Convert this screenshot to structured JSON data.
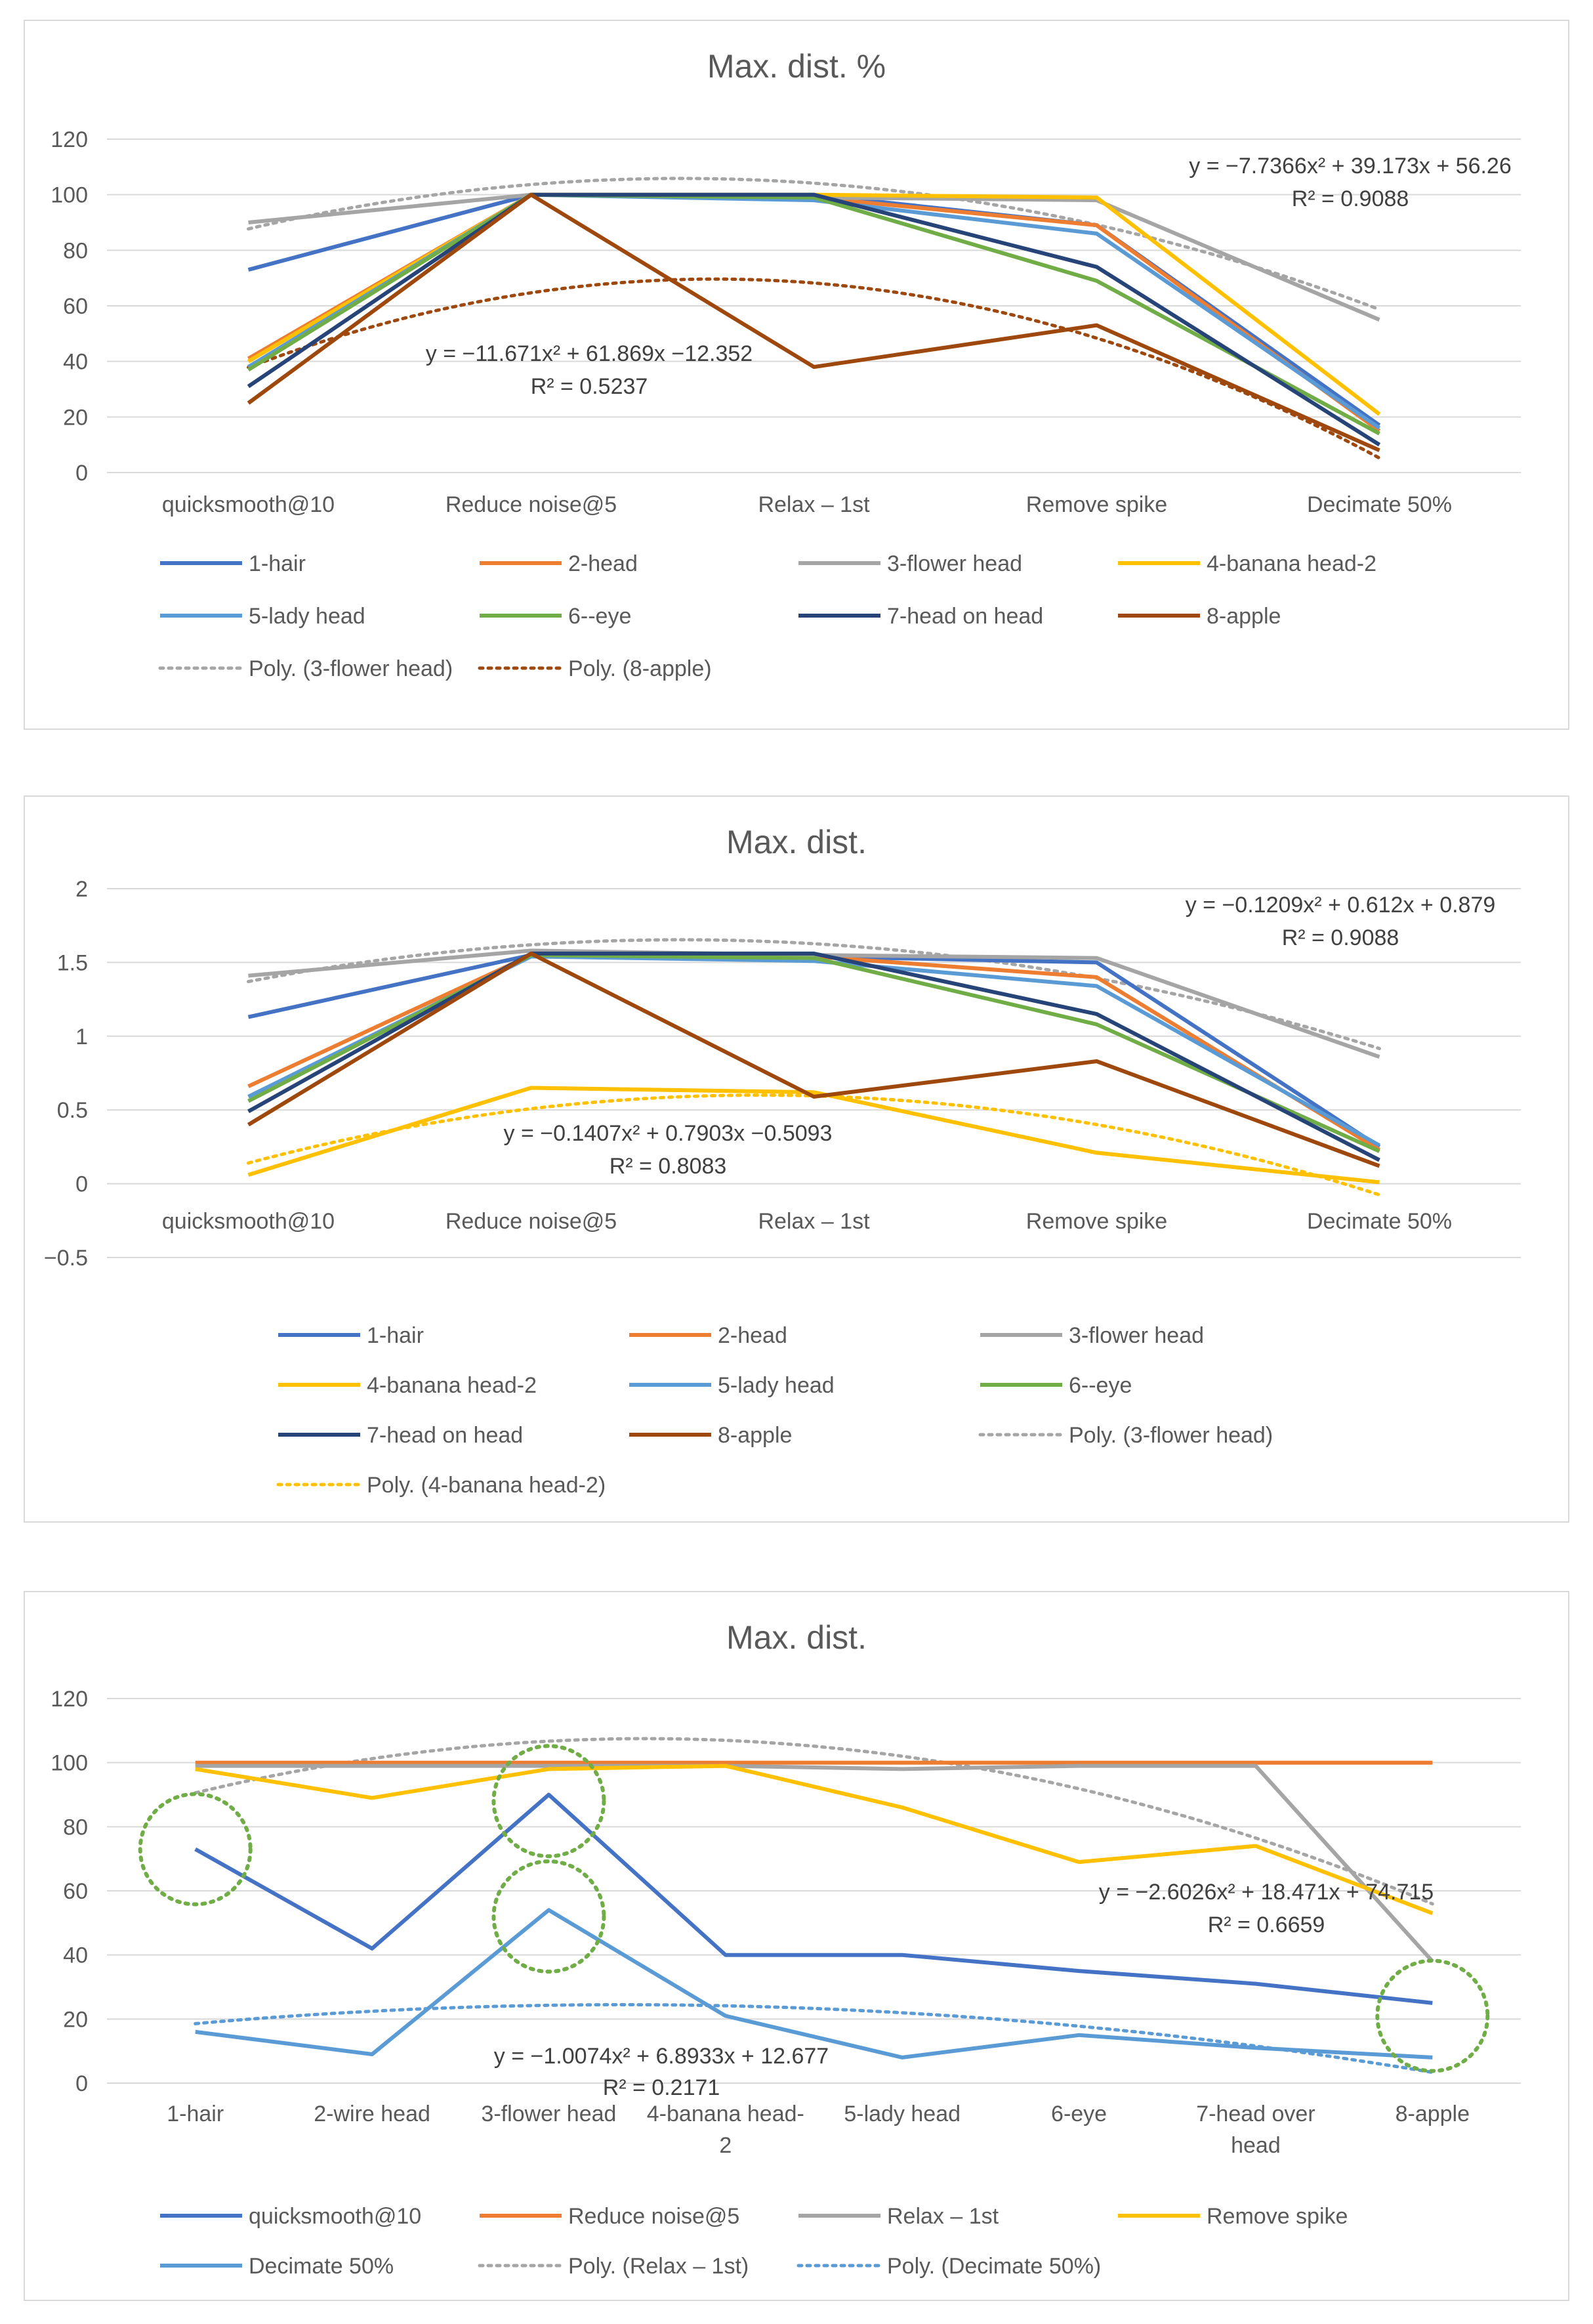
{
  "chart_data": [
    {
      "type": "line",
      "title": "Max. dist. %",
      "categories": [
        "quicksmooth@10",
        "Reduce noise@5",
        "Relax – 1st",
        "Remove spike",
        "Decimate 50%"
      ],
      "yticks": [
        "120",
        "100",
        "80",
        "60",
        "40",
        "20",
        "0"
      ],
      "ylim": [
        0,
        120
      ],
      "series": [
        {
          "name": "1-hair",
          "color": "#4472c4",
          "values": [
            73,
            100,
            100,
            89,
            17
          ]
        },
        {
          "name": "2-head",
          "color": "#ed7d31",
          "values": [
            41,
            100,
            99,
            89,
            15
          ]
        },
        {
          "name": "3-flower head",
          "color": "#a5a5a5",
          "values": [
            90,
            100,
            99,
            98,
            55
          ]
        },
        {
          "name": "4-banana head-2",
          "color": "#ffc000",
          "values": [
            40,
            100,
            100,
            99,
            21
          ]
        },
        {
          "name": "5-lady head",
          "color": "#5b9bd5",
          "values": [
            38,
            100,
            98,
            86,
            16
          ]
        },
        {
          "name": "6--eye",
          "color": "#70ad47",
          "values": [
            37,
            100,
            99,
            69,
            14
          ]
        },
        {
          "name": "7-head on head",
          "color": "#264478",
          "values": [
            31,
            100,
            100,
            74,
            10
          ]
        },
        {
          "name": "8-apple",
          "color": "#9e480e",
          "values": [
            25,
            100,
            38,
            53,
            8
          ]
        }
      ],
      "trendlines": [
        {
          "name": "Poly. (3-flower head)",
          "color": "#a5a5a5",
          "coef": [
            -7.7366,
            39.173,
            56.26
          ],
          "equation": "y = −7.7366x² + 39.173x + 56.26",
          "r2": "R² = 0.9088"
        },
        {
          "name": "Poly. (8-apple)",
          "color": "#9e480e",
          "coef": [
            -11.671,
            61.869,
            -12.352
          ],
          "equation": "y = −11.671x² + 61.869x −12.352",
          "r2": "R² = 0.5237"
        }
      ]
    },
    {
      "type": "line",
      "title": "Max. dist.",
      "categories": [
        "quicksmooth@10",
        "Reduce noise@5",
        "Relax – 1st",
        "Remove spike",
        "Decimate 50%"
      ],
      "yticks": [
        "2",
        "1.5",
        "1",
        "0.5",
        "0",
        "−0.5"
      ],
      "ylim": [
        -0.5,
        2
      ],
      "series": [
        {
          "name": "1-hair",
          "color": "#4472c4",
          "values": [
            1.13,
            1.55,
            1.54,
            1.5,
            0.25
          ]
        },
        {
          "name": "2-head",
          "color": "#ed7d31",
          "values": [
            0.66,
            1.55,
            1.54,
            1.4,
            0.23
          ]
        },
        {
          "name": "3-flower head",
          "color": "#a5a5a5",
          "values": [
            1.41,
            1.58,
            1.55,
            1.53,
            0.86
          ]
        },
        {
          "name": "4-banana head-2",
          "color": "#ffc000",
          "values": [
            0.06,
            0.65,
            0.62,
            0.21,
            0.01
          ]
        },
        {
          "name": "5-lady head",
          "color": "#5b9bd5",
          "values": [
            0.59,
            1.54,
            1.51,
            1.34,
            0.26
          ]
        },
        {
          "name": "6--eye",
          "color": "#70ad47",
          "values": [
            0.56,
            1.55,
            1.53,
            1.08,
            0.22
          ]
        },
        {
          "name": "7-head on head",
          "color": "#264478",
          "values": [
            0.49,
            1.56,
            1.56,
            1.15,
            0.16
          ]
        },
        {
          "name": "8-apple",
          "color": "#9e480e",
          "values": [
            0.4,
            1.56,
            0.59,
            0.83,
            0.12
          ]
        }
      ],
      "trendlines": [
        {
          "name": "Poly. (3-flower head)",
          "color": "#a5a5a5",
          "coef": [
            -0.1209,
            0.612,
            0.879
          ],
          "equation": "y = −0.1209x² + 0.612x + 0.879",
          "r2": "R² = 0.9088"
        },
        {
          "name": "Poly. (4-banana head-2)",
          "color": "#ffc000",
          "coef": [
            -0.1407,
            0.7903,
            -0.5093
          ],
          "equation": "y = −0.1407x² + 0.7903x −0.5093",
          "r2": "R² = 0.8083"
        }
      ]
    },
    {
      "type": "line",
      "title": "Max. dist.",
      "categories": [
        "1-hair",
        "2-wire head",
        "3-flower head",
        "4-banana head-2",
        "5-lady head",
        "6-eye",
        "7-head over head",
        "8-apple"
      ],
      "yticks": [
        "120",
        "100",
        "80",
        "60",
        "40",
        "20",
        "0"
      ],
      "ylim": [
        0,
        120
      ],
      "series": [
        {
          "name": "quicksmooth@10",
          "color": "#4472c4",
          "values": [
            73,
            42,
            90,
            40,
            40,
            35,
            31,
            25
          ]
        },
        {
          "name": "Reduce noise@5",
          "color": "#ed7d31",
          "values": [
            100,
            100,
            100,
            100,
            100,
            100,
            100,
            100
          ]
        },
        {
          "name": "Relax – 1st",
          "color": "#a5a5a5",
          "values": [
            99,
            99,
            99,
            99,
            98,
            99,
            99,
            38
          ]
        },
        {
          "name": "Remove spike",
          "color": "#ffc000",
          "values": [
            98,
            89,
            98,
            99,
            86,
            69,
            74,
            53
          ]
        },
        {
          "name": "Decimate 50%",
          "color": "#5b9bd5",
          "values": [
            16,
            9,
            54,
            21,
            8,
            15,
            11,
            8
          ]
        }
      ],
      "trendlines": [
        {
          "name": "Poly. (Relax – 1st)",
          "color": "#a5a5a5",
          "coef": [
            -2.6026,
            18.471,
            74.715
          ],
          "equation": "y = −2.6026x² + 18.471x + 74.715",
          "r2": "R² = 0.6659"
        },
        {
          "name": "Poly. (Decimate 50%)",
          "color": "#5b9bd5",
          "coef": [
            -1.0074,
            6.8933,
            12.677
          ],
          "equation": "y = −1.0074x² + 6.8933x + 12.677",
          "r2": "R² = 0.2171"
        }
      ],
      "annotations": [
        {
          "type": "dotted-circle",
          "color": "#70ad47",
          "category": "1-hair",
          "value": 73
        },
        {
          "type": "dotted-circle",
          "color": "#70ad47",
          "category": "3-flower head",
          "value": 88
        },
        {
          "type": "dotted-circle",
          "color": "#70ad47",
          "category": "3-flower head",
          "value": 52
        },
        {
          "type": "dotted-circle",
          "color": "#70ad47",
          "category": "8-apple",
          "value": 21
        }
      ]
    }
  ]
}
